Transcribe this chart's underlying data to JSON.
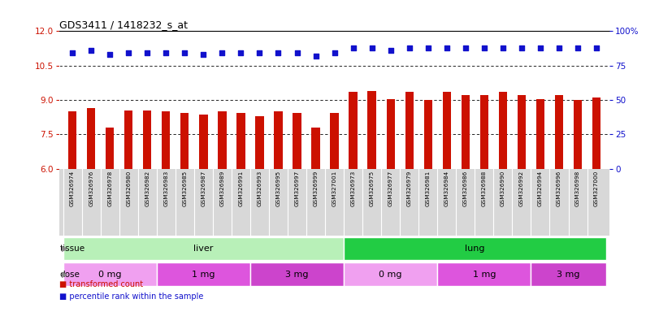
{
  "title": "GDS3411 / 1418232_s_at",
  "samples": [
    "GSM326974",
    "GSM326976",
    "GSM326978",
    "GSM326980",
    "GSM326982",
    "GSM326983",
    "GSM326985",
    "GSM326987",
    "GSM326989",
    "GSM326991",
    "GSM326993",
    "GSM326995",
    "GSM326997",
    "GSM326999",
    "GSM327001",
    "GSM326973",
    "GSM326975",
    "GSM326977",
    "GSM326979",
    "GSM326981",
    "GSM326984",
    "GSM326986",
    "GSM326988",
    "GSM326990",
    "GSM326992",
    "GSM326994",
    "GSM326996",
    "GSM326998",
    "GSM327000"
  ],
  "bar_values": [
    8.5,
    8.65,
    7.8,
    8.55,
    8.55,
    8.5,
    8.45,
    8.35,
    8.5,
    8.45,
    8.3,
    8.5,
    8.45,
    7.8,
    8.45,
    9.35,
    9.4,
    9.05,
    9.35,
    9.0,
    9.35,
    9.2,
    9.2,
    9.35,
    9.2,
    9.05,
    9.2,
    9.0,
    9.1
  ],
  "pct_right_values": [
    84,
    86,
    83,
    84,
    84,
    84,
    84,
    83,
    84,
    84,
    84,
    84,
    84,
    82,
    84,
    88,
    88,
    86,
    88,
    88,
    88,
    88,
    88,
    88,
    88,
    88,
    88,
    88,
    88
  ],
  "bar_color": "#cc1100",
  "dot_color": "#1111cc",
  "ylim_left": [
    6,
    12
  ],
  "ylim_right": [
    0,
    100
  ],
  "yticks_left": [
    6,
    7.5,
    9,
    10.5,
    12
  ],
  "yticks_right": [
    0,
    25,
    50,
    75,
    100
  ],
  "grid_values": [
    7.5,
    9.0,
    10.5
  ],
  "tissue_groups": [
    {
      "label": "liver",
      "start": 0,
      "end": 14,
      "color": "#b8f0b8"
    },
    {
      "label": "lung",
      "start": 15,
      "end": 28,
      "color": "#22cc44"
    }
  ],
  "dose_groups": [
    {
      "label": "0 mg",
      "start": 0,
      "end": 4,
      "color": "#f0a0f0"
    },
    {
      "label": "1 mg",
      "start": 5,
      "end": 9,
      "color": "#dd55dd"
    },
    {
      "label": "3 mg",
      "start": 10,
      "end": 14,
      "color": "#cc44cc"
    },
    {
      "label": "0 mg",
      "start": 15,
      "end": 19,
      "color": "#f0a0f0"
    },
    {
      "label": "1 mg",
      "start": 20,
      "end": 24,
      "color": "#dd55dd"
    },
    {
      "label": "3 mg",
      "start": 25,
      "end": 28,
      "color": "#cc44cc"
    }
  ],
  "legend_items": [
    {
      "label": "transformed count",
      "color": "#cc1100"
    },
    {
      "label": "percentile rank within the sample",
      "color": "#1111cc"
    }
  ],
  "xtick_bg": "#d8d8d8",
  "label_col": "#444444"
}
